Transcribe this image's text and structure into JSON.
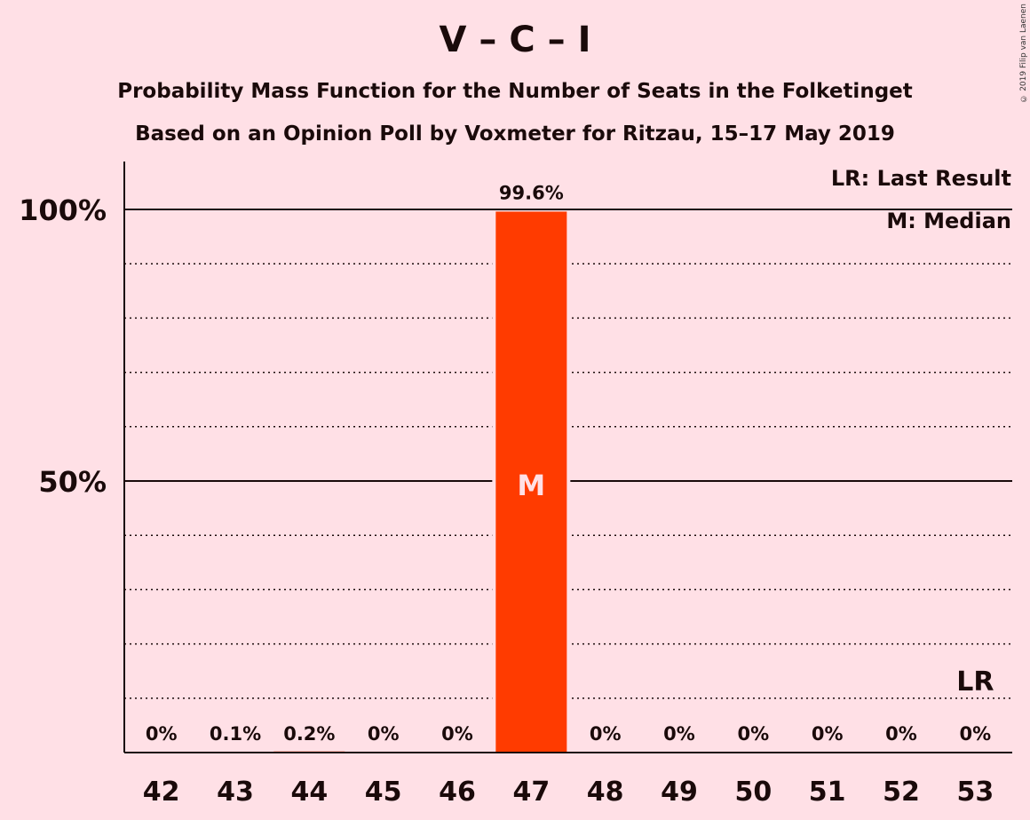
{
  "title": "V – C – I",
  "subtitle1": "Probability Mass Function for the Number of Seats in the Folketinget",
  "subtitle2": "Based on an Opinion Poll by Voxmeter for Ritzau, 15–17 May 2019",
  "copyright": "© 2019 Filip van Laenen",
  "legend": {
    "last_result": "LR: Last Result",
    "median": "M: Median"
  },
  "colors": {
    "background": "#ffe0e6",
    "bar": "#ff3b00",
    "text": "#1a0a0a"
  },
  "chart_data": {
    "type": "bar",
    "categories": [
      "42",
      "43",
      "44",
      "45",
      "46",
      "47",
      "48",
      "49",
      "50",
      "51",
      "52",
      "53"
    ],
    "values": [
      0,
      0.1,
      0.2,
      0,
      0,
      99.6,
      0,
      0,
      0,
      0,
      0,
      0
    ],
    "data_labels": [
      "0%",
      "0.1%",
      "0.2%",
      "0%",
      "0%",
      "99.6%",
      "0%",
      "0%",
      "0%",
      "0%",
      "0%",
      "0%"
    ],
    "yticks": [
      {
        "value": 50,
        "label": "50%"
      },
      {
        "value": 100,
        "label": "100%"
      }
    ],
    "ylim": [
      0,
      100
    ],
    "median_category": "47",
    "median_label": "M",
    "last_result_category": "53",
    "last_result_label": "LR",
    "grid": true
  }
}
